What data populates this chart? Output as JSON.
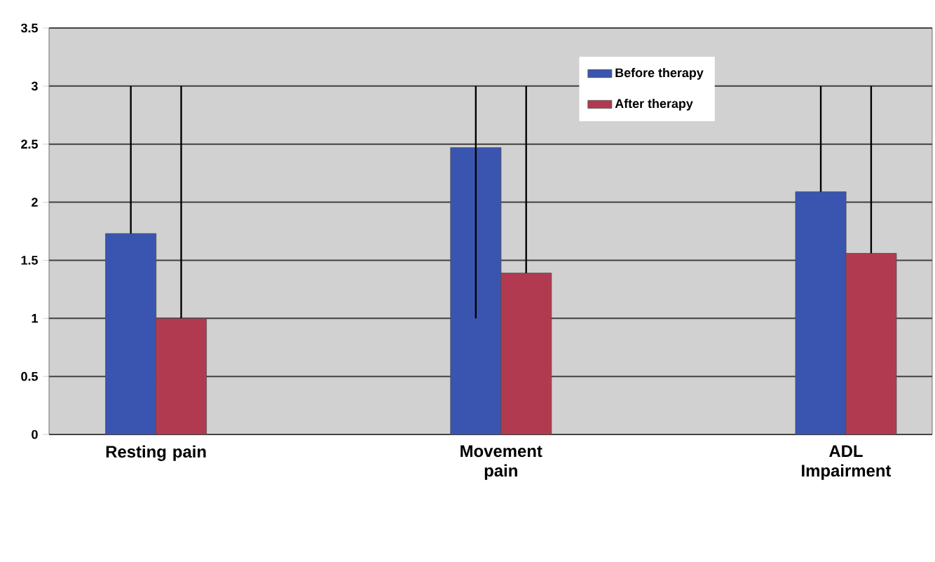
{
  "chart_data": {
    "type": "bar",
    "categories": [
      "Resting pain",
      "Movement pain",
      "ADL Impairment"
    ],
    "series": [
      {
        "name": "Before therapy",
        "color": "#3a55b0",
        "values": [
          1.73,
          2.47,
          2.09
        ],
        "errors": [
          [
            1.73,
            3
          ],
          [
            1.0,
            3
          ],
          [
            2.09,
            3
          ]
        ]
      },
      {
        "name": "After therapy",
        "color": "#b23a50",
        "values": [
          1.0,
          1.39,
          1.56
        ],
        "errors": [
          [
            1.0,
            3
          ],
          [
            1.39,
            3
          ],
          [
            1.56,
            3
          ]
        ]
      }
    ],
    "ylim": [
      0,
      3.5
    ],
    "yticks": [
      0,
      0.5,
      1,
      1.5,
      2,
      2.5,
      3,
      3.5
    ],
    "grid": "y",
    "legend": "top right"
  }
}
